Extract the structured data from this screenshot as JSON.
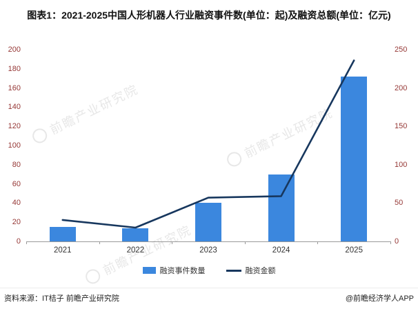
{
  "title": "图表1：2021-2025中国人形机器人行业融资事件数(单位：起)及融资总额(单位：亿元)",
  "legend": {
    "bar_label": "融资事件数量",
    "line_label": "融资金额"
  },
  "footer": {
    "source": "资料来源：IT桔子 前瞻产业研究院",
    "credit": "@前瞻经济学人APP"
  },
  "watermark": "前瞻产业研究院",
  "colors": {
    "bar": "#3b87de",
    "line": "#17375e",
    "axis_label": "#953735"
  },
  "chart_data": {
    "type": "bar",
    "subtype": "bar+line combo",
    "title": "2021-2025中国人形机器人行业融资事件数(单位：起)及融资总额(单位：亿元)",
    "categories": [
      "2021",
      "2022",
      "2023",
      "2024",
      "2025"
    ],
    "series": [
      {
        "name": "融资事件数量",
        "type": "bar",
        "axis": "left",
        "unit": "起",
        "values": [
          15,
          14,
          40,
          70,
          172
        ]
      },
      {
        "name": "融资金额",
        "type": "line",
        "axis": "right",
        "unit": "亿元",
        "values": [
          28,
          18,
          57,
          59,
          236
        ]
      }
    ],
    "left_axis": {
      "min": 0,
      "max": 200,
      "step": 20
    },
    "right_axis": {
      "min": 0,
      "max": 250,
      "step": 50
    },
    "grid": false,
    "legend_position": "bottom"
  }
}
